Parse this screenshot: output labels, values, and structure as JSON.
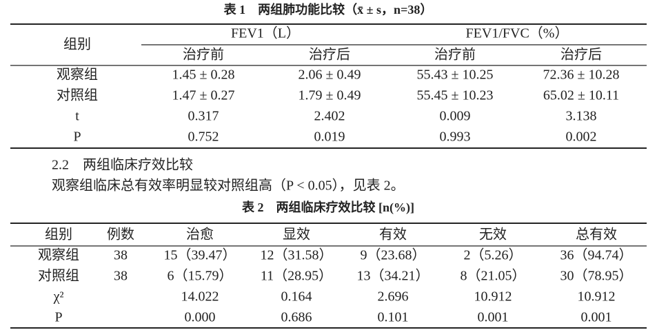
{
  "table1": {
    "caption": "表 1　两组肺功能比较（x̄ ± s，n=38）",
    "group_header": "组别",
    "column_groups": [
      "FEV1（L）",
      "FEV1/FVC（%）"
    ],
    "subheaders": [
      "治疗前",
      "治疗后",
      "治疗前",
      "治疗后"
    ],
    "rows": [
      [
        "观察组",
        "1.45 ± 0.28",
        "2.06 ± 0.49",
        "55.43 ± 10.25",
        "72.36 ± 10.28"
      ],
      [
        "对照组",
        "1.47 ± 0.27",
        "1.79 ± 0.49",
        "55.45 ± 10.23",
        "65.02 ± 10.11"
      ],
      [
        "t",
        "0.317",
        "2.402",
        "0.009",
        "3.138"
      ],
      [
        "P",
        "0.752",
        "0.019",
        "0.993",
        "0.002"
      ]
    ]
  },
  "section": {
    "heading": "2.2　两组临床疗效比较",
    "text": "观察组临床总有效率明显较对照组高（P < 0.05），见表 2。"
  },
  "table2": {
    "caption": "表 2　两组临床疗效比较 [n(%)]",
    "headers": [
      "组别",
      "例数",
      "治愈",
      "显效",
      "有效",
      "无效",
      "总有效"
    ],
    "rows": [
      [
        "观察组",
        "38",
        "15（39.47）",
        "12（31.58）",
        "9（23.68）",
        "2（5.26）",
        "36（94.74）"
      ],
      [
        "对照组",
        "38",
        "6（15.79）",
        "11（28.95）",
        "13（34.21）",
        "8（21.05）",
        "30（78.95）"
      ],
      [
        "χ²",
        null,
        "14.022",
        "0.164",
        "2.696",
        "10.912",
        "10.912"
      ],
      [
        "P",
        null,
        "0.000",
        "0.686",
        "0.101",
        "0.001",
        "0.001"
      ]
    ]
  }
}
